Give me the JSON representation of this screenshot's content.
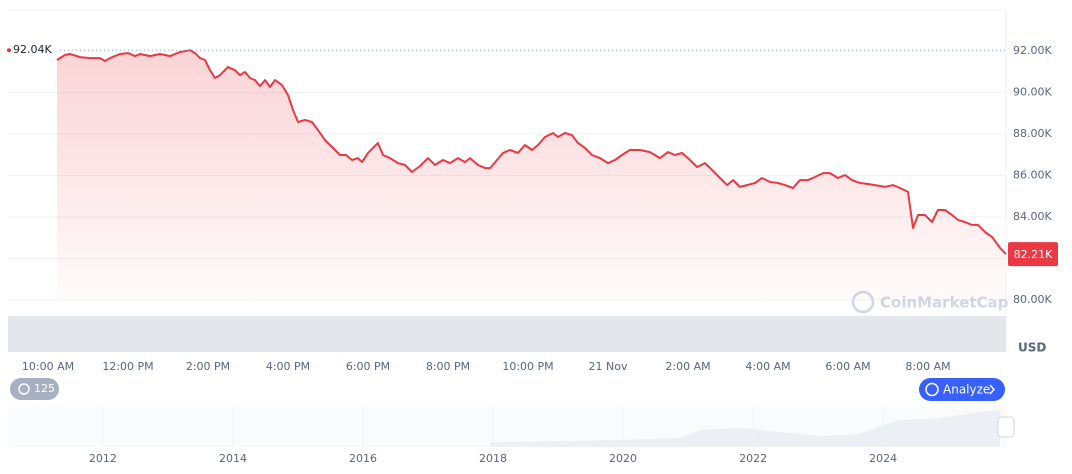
{
  "chart_data": {
    "type": "line",
    "x": [
      10.225,
      10.425,
      10.55,
      10.8,
      11.05,
      11.3,
      11.425,
      11.55,
      11.8,
      12,
      12.175,
      12.3,
      12.55,
      12.8,
      13.05,
      13.3,
      13.55,
      13.675,
      13.8,
      13.925,
      14.05,
      14.175,
      14.3,
      14.5,
      14.675,
      14.8,
      14.925,
      15.05,
      15.175,
      15.3,
      15.425,
      15.55,
      15.675,
      15.85,
      16,
      16.125,
      16.25,
      16.425,
      16.6,
      16.75,
      16.925,
      17.125,
      17.3,
      17.45,
      17.6,
      17.75,
      17.85,
      18,
      18.125,
      18.25,
      18.375,
      18.55,
      18.75,
      18.925,
      19.1,
      19.3,
      19.5,
      19.675,
      19.875,
      20.05,
      20.25,
      20.425,
      20.55,
      20.75,
      20.925,
      21.05,
      21.225,
      21.375,
      21.55,
      21.75,
      21.925,
      22.1,
      22.25,
      22.425,
      22.625,
      22.75,
      22.925,
      23.1,
      23.25,
      23.425,
      23.6,
      23.8,
      24,
      24.175,
      24.35,
      24.55,
      24.8,
      25.05,
      25.3,
      25.5,
      25.675,
      25.85,
      26.05,
      26.225,
      26.425,
      26.6,
      26.8,
      26.975,
      27.125,
      27.3,
      27.475,
      27.675,
      27.85,
      28.05,
      28.25,
      28.425,
      28.625,
      28.8,
      29,
      29.175,
      29.375,
      29.55,
      29.75,
      29.925,
      30.1,
      30.3,
      30.5,
      30.675,
      30.925,
      31.125,
      31.3,
      31.5,
      31.625,
      31.75,
      31.925,
      32.1,
      32.25,
      32.425,
      32.6,
      32.75,
      32.925,
      33.1,
      33.25,
      33.425,
      33.6,
      33.8,
      33.95
    ],
    "values": [
      91570,
      91810,
      91860,
      91710,
      91660,
      91660,
      91520,
      91660,
      91860,
      91900,
      91760,
      91860,
      91760,
      91860,
      91760,
      91950,
      92040,
      91900,
      91660,
      91570,
      91080,
      90700,
      90840,
      91230,
      91080,
      90840,
      90990,
      90700,
      90600,
      90310,
      90600,
      90270,
      90600,
      90360,
      89880,
      89160,
      88580,
      88680,
      88580,
      88190,
      87710,
      87330,
      86990,
      86990,
      86750,
      86840,
      86650,
      87090,
      87330,
      87570,
      86990,
      86840,
      86600,
      86510,
      86170,
      86460,
      86840,
      86510,
      86750,
      86600,
      86840,
      86650,
      86840,
      86510,
      86360,
      86360,
      86750,
      87090,
      87230,
      87090,
      87470,
      87230,
      87470,
      87860,
      88050,
      87860,
      88050,
      87950,
      87570,
      87330,
      86990,
      86840,
      86600,
      86750,
      86990,
      87230,
      87230,
      87130,
      86840,
      87130,
      86990,
      87090,
      86750,
      86410,
      86600,
      86270,
      85880,
      85540,
      85780,
      85450,
      85540,
      85640,
      85880,
      85690,
      85640,
      85540,
      85400,
      85780,
      85780,
      85930,
      86120,
      86120,
      85880,
      86020,
      85780,
      85640,
      85590,
      85540,
      85450,
      85540,
      85400,
      85210,
      83470,
      84100,
      84100,
      83760,
      84340,
      84340,
      84100,
      83860,
      83760,
      83620,
      83620,
      83280,
      83040,
      82510,
      82210
    ],
    "color": "#ea3943",
    "xlim": [
      9,
      33.95
    ],
    "xticks": [
      {
        "value": 10,
        "label": "10:00 AM"
      },
      {
        "value": 12,
        "label": "12:00 PM"
      },
      {
        "value": 14,
        "label": "2:00 PM"
      },
      {
        "value": 16,
        "label": "4:00 PM"
      },
      {
        "value": 18,
        "label": "6:00 PM"
      },
      {
        "value": 20,
        "label": "8:00 PM"
      },
      {
        "value": 22,
        "label": "10:00 PM"
      },
      {
        "value": 24,
        "label": "21 Nov"
      },
      {
        "value": 26,
        "label": "2:00 AM"
      },
      {
        "value": 28,
        "label": "4:00 AM"
      },
      {
        "value": 30,
        "label": "6:00 AM"
      },
      {
        "value": 32,
        "label": "8:00 AM"
      }
    ],
    "ylim": [
      77590,
      93980
    ],
    "yticks": [
      {
        "value": 80000,
        "label": "80.00K"
      },
      {
        "value": 82000,
        "label": "82.00K"
      },
      {
        "value": 84000,
        "label": "84.00K"
      },
      {
        "value": 86000,
        "label": "86.00K"
      },
      {
        "value": 88000,
        "label": "88.00K"
      },
      {
        "value": 90000,
        "label": "90.00K"
      },
      {
        "value": 92000,
        "label": "92.00K"
      }
    ],
    "y_unit": "USD",
    "grid": true,
    "high": {
      "value": 92040,
      "label": "92.04K"
    },
    "current": {
      "value": 82210,
      "label": "82.21K"
    }
  },
  "ui": {
    "watermark": "CoinMarketCap",
    "badge": "125",
    "analyze_button": "Analyze"
  },
  "navigator": {
    "xlim": [
      2010.54,
      2025.89
    ],
    "xticks": [
      2012,
      2014,
      2016,
      2018,
      2020,
      2022,
      2024
    ]
  }
}
